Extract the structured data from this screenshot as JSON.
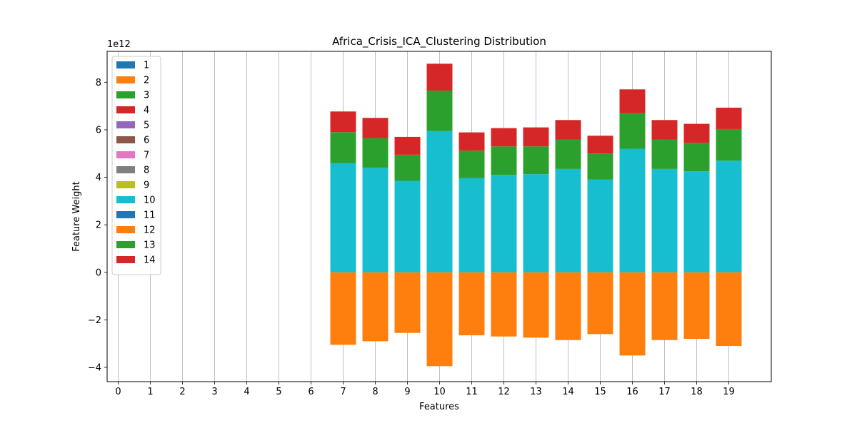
{
  "chart_data": {
    "type": "bar",
    "stacked": true,
    "title": "Africa_Crisis_ICA_Clustering Distribution",
    "xlabel": "Features",
    "ylabel": "Feature Weight",
    "y_multiplier_label": "1e12",
    "categories": [
      "0",
      "1",
      "2",
      "3",
      "4",
      "5",
      "6",
      "7",
      "8",
      "9",
      "10",
      "11",
      "12",
      "13",
      "14",
      "15",
      "16",
      "17",
      "18",
      "19"
    ],
    "ylim": [
      -4.6,
      9.3
    ],
    "yticks": [
      -4,
      -2,
      0,
      2,
      4,
      6,
      8
    ],
    "ytick_labels": [
      "−4",
      "−2",
      "0",
      "2",
      "4",
      "6",
      "8"
    ],
    "grid": "vertical",
    "legend_position": "upper-left",
    "series": [
      {
        "name": "1",
        "color": "#1f77b4",
        "values": [
          0,
          0,
          0,
          0,
          0,
          0,
          0,
          0,
          0,
          0,
          0,
          0,
          0,
          0,
          0,
          0,
          0,
          0,
          0,
          0
        ]
      },
      {
        "name": "2",
        "color": "#ff7f0e",
        "values": [
          0,
          0,
          0,
          0,
          0,
          0,
          0,
          0,
          0,
          0,
          0,
          0,
          0,
          0,
          0,
          0,
          0,
          0,
          0,
          0
        ]
      },
      {
        "name": "3",
        "color": "#2ca02c",
        "values": [
          0,
          0,
          0,
          0,
          0,
          0,
          0,
          0,
          0,
          0,
          0,
          0,
          0,
          0,
          0,
          0,
          0,
          0,
          0,
          0
        ]
      },
      {
        "name": "4",
        "color": "#d62728",
        "values": [
          0,
          0,
          0,
          0,
          0,
          0,
          0,
          0,
          0,
          0,
          0,
          0,
          0,
          0,
          0,
          0,
          0,
          0,
          0,
          0
        ]
      },
      {
        "name": "5",
        "color": "#9467bd",
        "values": [
          0,
          0,
          0,
          0,
          0,
          0,
          0,
          0,
          0,
          0,
          0,
          0,
          0,
          0,
          0,
          0,
          0,
          0,
          0,
          0
        ]
      },
      {
        "name": "6",
        "color": "#8c564b",
        "values": [
          0,
          0,
          0,
          0,
          0,
          0,
          0,
          0,
          0,
          0,
          0,
          0,
          0,
          0,
          0,
          0,
          0,
          0,
          0,
          0
        ]
      },
      {
        "name": "7",
        "color": "#e377c2",
        "values": [
          0,
          0,
          0,
          0,
          0,
          0,
          0,
          0,
          0,
          0,
          0,
          0,
          0,
          0,
          0,
          0,
          0,
          0,
          0,
          0
        ]
      },
      {
        "name": "8",
        "color": "#7f7f7f",
        "values": [
          0,
          0,
          0,
          0,
          0,
          0,
          0,
          0,
          0,
          0,
          0,
          0,
          0,
          0,
          0,
          0,
          0,
          0,
          0,
          0
        ]
      },
      {
        "name": "9",
        "color": "#bcbd22",
        "values": [
          0,
          0,
          0,
          0,
          0,
          0,
          0,
          0,
          0,
          0,
          0,
          0,
          0,
          0,
          0,
          0,
          0,
          0,
          0,
          0
        ]
      },
      {
        "name": "10",
        "color": "#17becf",
        "values": [
          0,
          0,
          0,
          0,
          0,
          0,
          0,
          4.6,
          4.4,
          3.85,
          5.95,
          3.97,
          4.1,
          4.13,
          4.35,
          3.9,
          5.2,
          4.35,
          4.25,
          4.7
        ]
      },
      {
        "name": "11",
        "color": "#1f77b4",
        "values": [
          0,
          0,
          0,
          0,
          0,
          0,
          0,
          0,
          0,
          0,
          0,
          0,
          0,
          0,
          0,
          0,
          0,
          0,
          0,
          0
        ]
      },
      {
        "name": "12",
        "color": "#ff7f0e",
        "values": [
          0,
          0,
          0,
          0,
          0,
          0,
          0,
          -3.05,
          -2.9,
          -2.55,
          -3.95,
          -2.65,
          -2.7,
          -2.75,
          -2.85,
          -2.6,
          -3.5,
          -2.85,
          -2.8,
          -3.1
        ]
      },
      {
        "name": "13",
        "color": "#2ca02c",
        "values": [
          0,
          0,
          0,
          0,
          0,
          0,
          0,
          1.3,
          1.25,
          1.1,
          1.7,
          1.15,
          1.2,
          1.17,
          1.23,
          1.1,
          1.5,
          1.23,
          1.2,
          1.33
        ]
      },
      {
        "name": "14",
        "color": "#d62728",
        "values": [
          0,
          0,
          0,
          0,
          0,
          0,
          0,
          0.87,
          0.85,
          0.75,
          1.13,
          0.77,
          0.77,
          0.8,
          0.83,
          0.75,
          1.0,
          0.83,
          0.8,
          0.9
        ]
      }
    ]
  }
}
